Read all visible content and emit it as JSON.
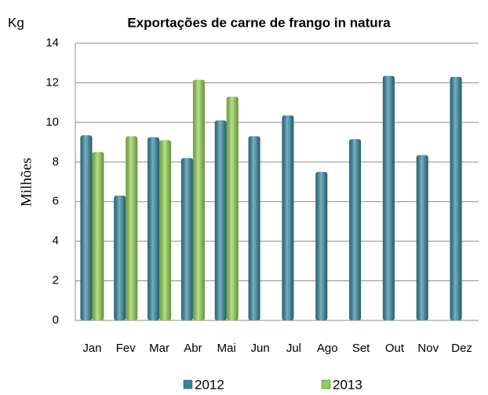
{
  "chart_data": {
    "type": "bar",
    "title": "Exportações de carne de frango in natura",
    "unit_label": "Kg",
    "y_axis_label": "Milhões",
    "categories": [
      "Jan",
      "Fev",
      "Mar",
      "Abr",
      "Mai",
      "Jun",
      "Jul",
      "Ago",
      "Set",
      "Out",
      "Nov",
      "Dez"
    ],
    "series": [
      {
        "name": "2012",
        "color": "#31859c",
        "values": [
          9.35,
          6.3,
          9.25,
          8.2,
          10.1,
          9.3,
          10.35,
          7.5,
          9.15,
          12.35,
          8.35,
          12.3
        ]
      },
      {
        "name": "2013",
        "color": "#92d050",
        "values": [
          8.5,
          9.3,
          9.1,
          12.15,
          11.3,
          null,
          null,
          null,
          null,
          null,
          null,
          null
        ]
      }
    ],
    "ylim": [
      0,
      14
    ],
    "yticks": [
      0,
      2,
      4,
      6,
      8,
      10,
      12,
      14
    ],
    "grid": true,
    "legend": "bottom"
  }
}
